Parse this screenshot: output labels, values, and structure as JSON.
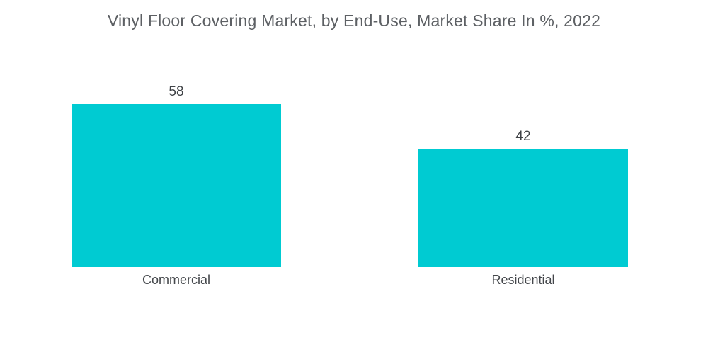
{
  "chart_data": {
    "type": "bar",
    "title": "Vinyl Floor Covering Market, by End-Use, Market Share In %, 2022",
    "categories": [
      "Commercial",
      "Residential"
    ],
    "values": [
      58,
      42
    ],
    "xlabel": "",
    "ylabel": "Market Share In %",
    "ylim": [
      0,
      100
    ],
    "grid": false,
    "legend_position": "none",
    "bar_color": "#00cbd2",
    "title_color": "#5d6064",
    "label_color": "#404347"
  }
}
